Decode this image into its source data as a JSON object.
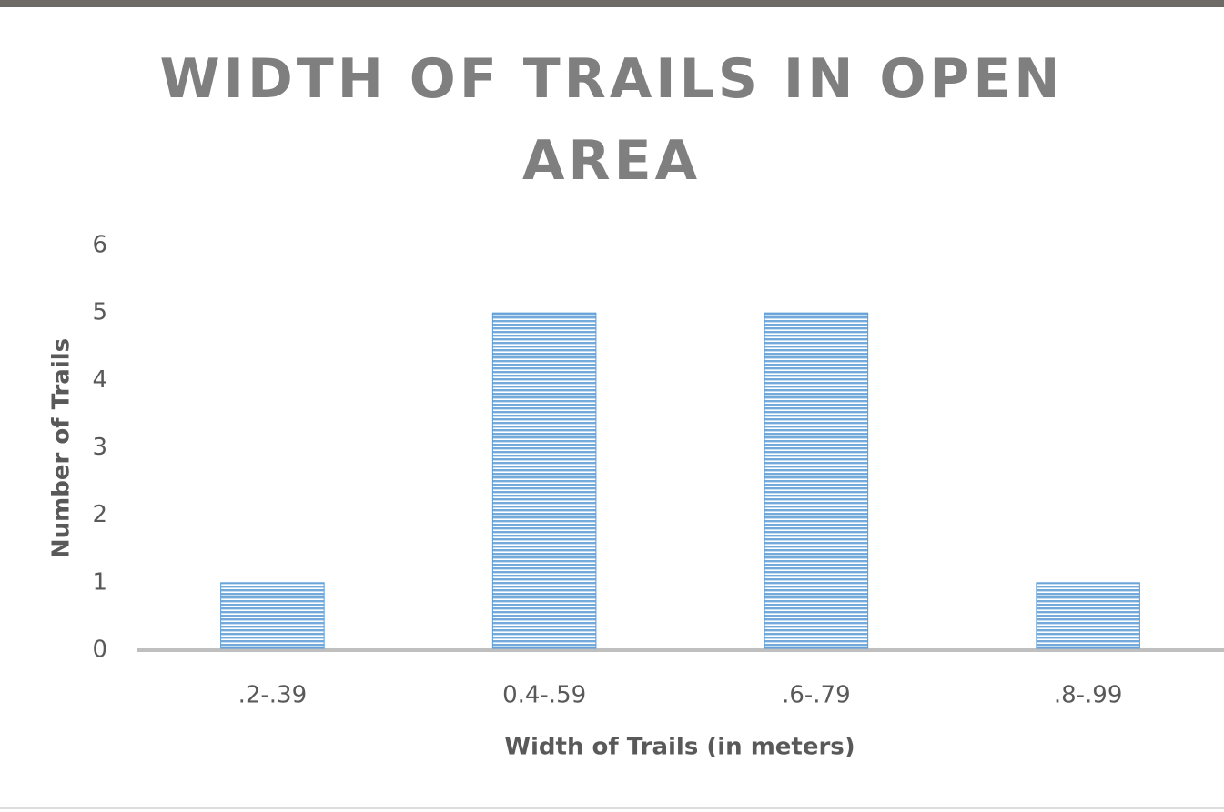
{
  "chart_data": {
    "type": "bar",
    "title": "WIDTH OF TRAILS IN OPEN AREA",
    "x_label": "Width of Trails (in meters)",
    "y_label": "Number of Trails",
    "categories": [
      ".2-.39",
      "0.4-.59",
      ".6-.79",
      ".8-.99"
    ],
    "values": [
      1,
      5,
      5,
      1
    ],
    "color": "#5b9bd5",
    "ylim": [
      0,
      6
    ],
    "yticks": [
      0,
      1,
      2,
      3,
      4,
      5,
      6
    ],
    "grid": false
  }
}
